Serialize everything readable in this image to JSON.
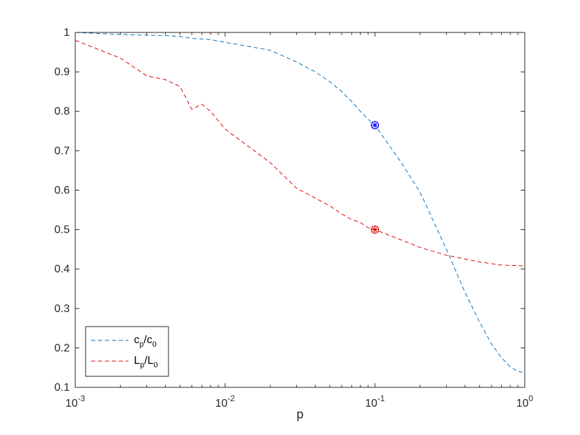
{
  "chart_data": {
    "type": "line",
    "title": "",
    "xlabel": "p",
    "ylabel": "",
    "xscale": "log",
    "xlim": [
      0.001,
      1
    ],
    "ylim": [
      0.1,
      1
    ],
    "grid": false,
    "legend_position": "bottom-left",
    "x_ticks": [
      {
        "value": 0.001,
        "base": "10",
        "exp": "-3"
      },
      {
        "value": 0.01,
        "base": "10",
        "exp": "-2"
      },
      {
        "value": 0.1,
        "base": "10",
        "exp": "-1"
      },
      {
        "value": 1,
        "base": "10",
        "exp": "0"
      }
    ],
    "y_ticks": [
      {
        "value": 0.1,
        "label": "0.1"
      },
      {
        "value": 0.2,
        "label": "0.2"
      },
      {
        "value": 0.3,
        "label": "0.3"
      },
      {
        "value": 0.4,
        "label": "0.4"
      },
      {
        "value": 0.5,
        "label": "0.5"
      },
      {
        "value": 0.6,
        "label": "0.6"
      },
      {
        "value": 0.7,
        "label": "0.7"
      },
      {
        "value": 0.8,
        "label": "0.8"
      },
      {
        "value": 0.9,
        "label": "0.9"
      },
      {
        "value": 1,
        "label": "1"
      }
    ],
    "series": [
      {
        "legend": {
          "main": "c",
          "sub": "p",
          "slash": "/c",
          "sub2": "0"
        },
        "color": "#0072bd",
        "line_style": "dashed",
        "x": [
          0.001,
          0.002,
          0.003,
          0.004,
          0.005,
          0.006,
          0.008,
          0.01,
          0.02,
          0.03,
          0.04,
          0.05,
          0.06,
          0.07,
          0.08,
          0.09,
          0.1,
          0.15,
          0.2,
          0.3,
          0.4,
          0.5,
          0.6,
          0.7,
          0.8,
          0.9,
          1.0
        ],
        "y": [
          1.0,
          0.995,
          0.993,
          0.992,
          0.99,
          0.985,
          0.982,
          0.975,
          0.955,
          0.925,
          0.9,
          0.875,
          0.85,
          0.825,
          0.8,
          0.78,
          0.765,
          0.67,
          0.595,
          0.45,
          0.34,
          0.265,
          0.21,
          0.175,
          0.152,
          0.14,
          0.138
        ],
        "marker": {
          "x": 0.1,
          "y": 0.765,
          "color": "#0000ff"
        }
      },
      {
        "legend": {
          "main": "L",
          "sub": "p",
          "slash": "/L",
          "sub2": "0"
        },
        "color": "#e00000",
        "line_style": "dashed",
        "x": [
          0.001,
          0.002,
          0.003,
          0.004,
          0.005,
          0.006,
          0.007,
          0.008,
          0.01,
          0.02,
          0.03,
          0.04,
          0.05,
          0.06,
          0.07,
          0.08,
          0.09,
          0.1,
          0.2,
          0.3,
          0.5,
          0.7,
          1.0
        ],
        "y": [
          0.98,
          0.935,
          0.89,
          0.88,
          0.863,
          0.805,
          0.818,
          0.8,
          0.755,
          0.67,
          0.605,
          0.58,
          0.56,
          0.54,
          0.525,
          0.518,
          0.505,
          0.5,
          0.455,
          0.435,
          0.418,
          0.41,
          0.408
        ],
        "marker": {
          "x": 0.1,
          "y": 0.5,
          "color": "#e00000"
        }
      }
    ]
  }
}
